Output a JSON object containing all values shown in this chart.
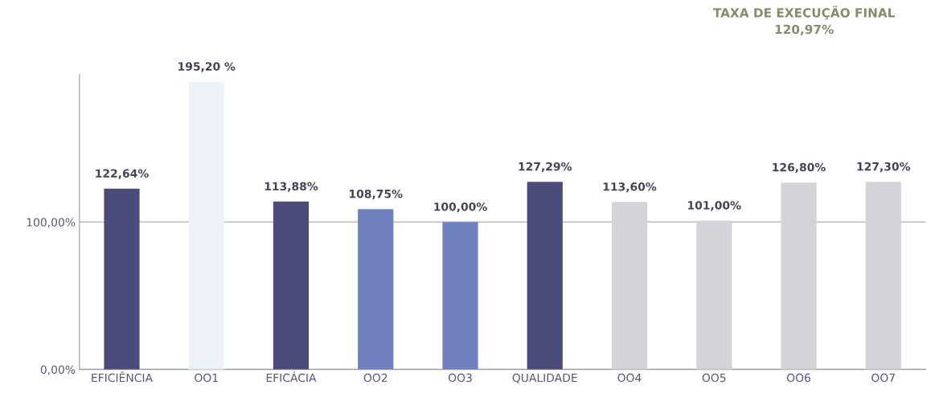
{
  "chart_data": {
    "type": "bar",
    "title": "TAXA DE EXECUÇÃO FINAL\n120,97%",
    "categories": [
      "EFICIÊNCIA",
      "OO1",
      "EFICÁCIA",
      "OO2",
      "OO3",
      "QUALIDADE",
      "OO4",
      "OO5",
      "OO6",
      "OO7"
    ],
    "values": [
      122.64,
      195.2,
      113.88,
      108.75,
      100.0,
      127.29,
      113.6,
      101.0,
      126.8,
      127.3
    ],
    "colors": [
      "#4b4b7c",
      "#eef3fa",
      "#4b4b7c",
      "#6f80bf",
      "#6f80bf",
      "#4b4b7c",
      "#d3d3da",
      "#d3d3da",
      "#d3d3da",
      "#d3d3da"
    ],
    "value_labels": [
      "122,64%",
      "195,20 %",
      "113,88%",
      "108,75%",
      "100,00%",
      "127,29%",
      "113,60%",
      "101,00%",
      "126,80%",
      "127,30%"
    ],
    "ylim": [
      0,
      200
    ],
    "yticks": [
      {
        "value": 0,
        "label": "0,00%"
      },
      {
        "value": 100,
        "label": "100,00%"
      }
    ],
    "grid": "y"
  }
}
